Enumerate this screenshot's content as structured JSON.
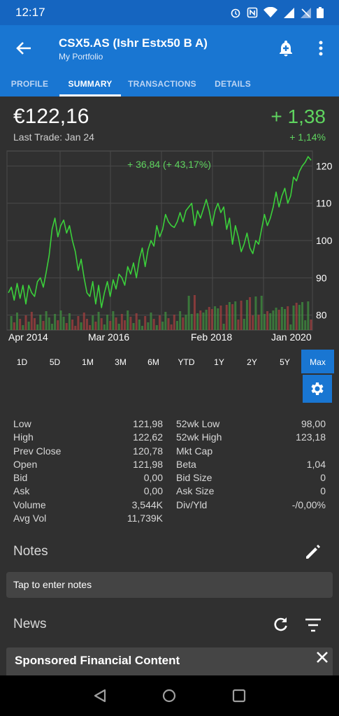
{
  "status": {
    "time": "12:17"
  },
  "header": {
    "title": "CSX5.AS (Ishr Estx50 B A)",
    "subtitle": "My Portfolio"
  },
  "tabs": [
    {
      "label": "PROFILE",
      "active": false
    },
    {
      "label": "SUMMARY",
      "active": true
    },
    {
      "label": "TRANSACTIONS",
      "active": false
    },
    {
      "label": "DETAILS",
      "active": false
    }
  ],
  "quote": {
    "price": "€122,16",
    "last_trade": "Last Trade: Jan 24",
    "change": "+ 1,38",
    "change_pct": "+ 1,14%"
  },
  "chart_data": {
    "type": "line",
    "annotation": "+ 36,84 (+ 43,17%)",
    "x_ticks": [
      "Apr 2014",
      "Mar 2016",
      "Feb 2018",
      "Jan 2020"
    ],
    "y_ticks": [
      120,
      110,
      100,
      90,
      80
    ],
    "ylim": [
      76,
      124
    ],
    "series": [
      {
        "values": [
          86,
          87.5,
          84,
          88.5,
          84.5,
          88,
          83,
          88,
          86,
          85,
          89,
          90,
          87.5,
          91.5,
          96,
          103,
          106,
          101,
          104,
          105.5,
          102,
          104,
          100,
          97,
          92,
          95,
          90,
          86,
          85,
          89,
          83,
          88,
          82,
          86,
          89,
          85,
          89.5,
          87,
          91,
          90,
          88,
          93,
          91,
          94,
          90,
          95,
          98,
          93,
          97.5,
          100,
          98.5,
          104,
          101,
          103,
          107,
          105,
          104,
          103.5,
          105,
          107.5,
          105,
          108,
          109,
          110,
          104,
          108,
          106,
          108.5,
          111,
          108,
          104,
          108,
          110,
          107.5,
          109,
          103,
          106,
          99,
          104,
          101,
          97,
          99,
          102,
          98,
          96.5,
          100,
          99,
          103,
          107,
          104,
          106,
          109,
          113,
          109,
          112,
          114,
          110,
          112,
          117,
          116,
          118.5,
          120,
          121,
          122.5,
          121.5
        ]
      }
    ],
    "volume_colors": {
      "up": "#3f8a3f",
      "down": "#9c3f3f"
    },
    "line_color": "#3bcf3b"
  },
  "ranges": [
    {
      "label": "1D",
      "active": false
    },
    {
      "label": "5D",
      "active": false
    },
    {
      "label": "1M",
      "active": false
    },
    {
      "label": "3M",
      "active": false
    },
    {
      "label": "6M",
      "active": false
    },
    {
      "label": "YTD",
      "active": false
    },
    {
      "label": "1Y",
      "active": false
    },
    {
      "label": "2Y",
      "active": false
    },
    {
      "label": "5Y",
      "active": false
    },
    {
      "label": "Max",
      "active": true
    }
  ],
  "stats": [
    {
      "l1": "Low",
      "v1": "121,98",
      "l2": "52wk Low",
      "v2": "98,00"
    },
    {
      "l1": "High",
      "v1": "122,62",
      "l2": "52wk High",
      "v2": "123,18"
    },
    {
      "l1": "Prev Close",
      "v1": "120,78",
      "l2": "Mkt Cap",
      "v2": ""
    },
    {
      "l1": "Open",
      "v1": "121,98",
      "l2": "Beta",
      "v2": "1,04"
    },
    {
      "l1": "Bid",
      "v1": "0,00",
      "l2": "Bid Size",
      "v2": "0"
    },
    {
      "l1": "Ask",
      "v1": "0,00",
      "l2": "Ask Size",
      "v2": "0"
    },
    {
      "l1": "Volume",
      "v1": "3,544K",
      "l2": "Div/Yld",
      "v2": "-/0,00%"
    },
    {
      "l1": "Avg Vol",
      "v1": "11,739K",
      "l2": "",
      "v2": ""
    }
  ],
  "notes": {
    "heading": "Notes",
    "placeholder": "Tap to enter notes"
  },
  "news": {
    "heading": "News",
    "sponsored": "Sponsored Financial Content"
  }
}
